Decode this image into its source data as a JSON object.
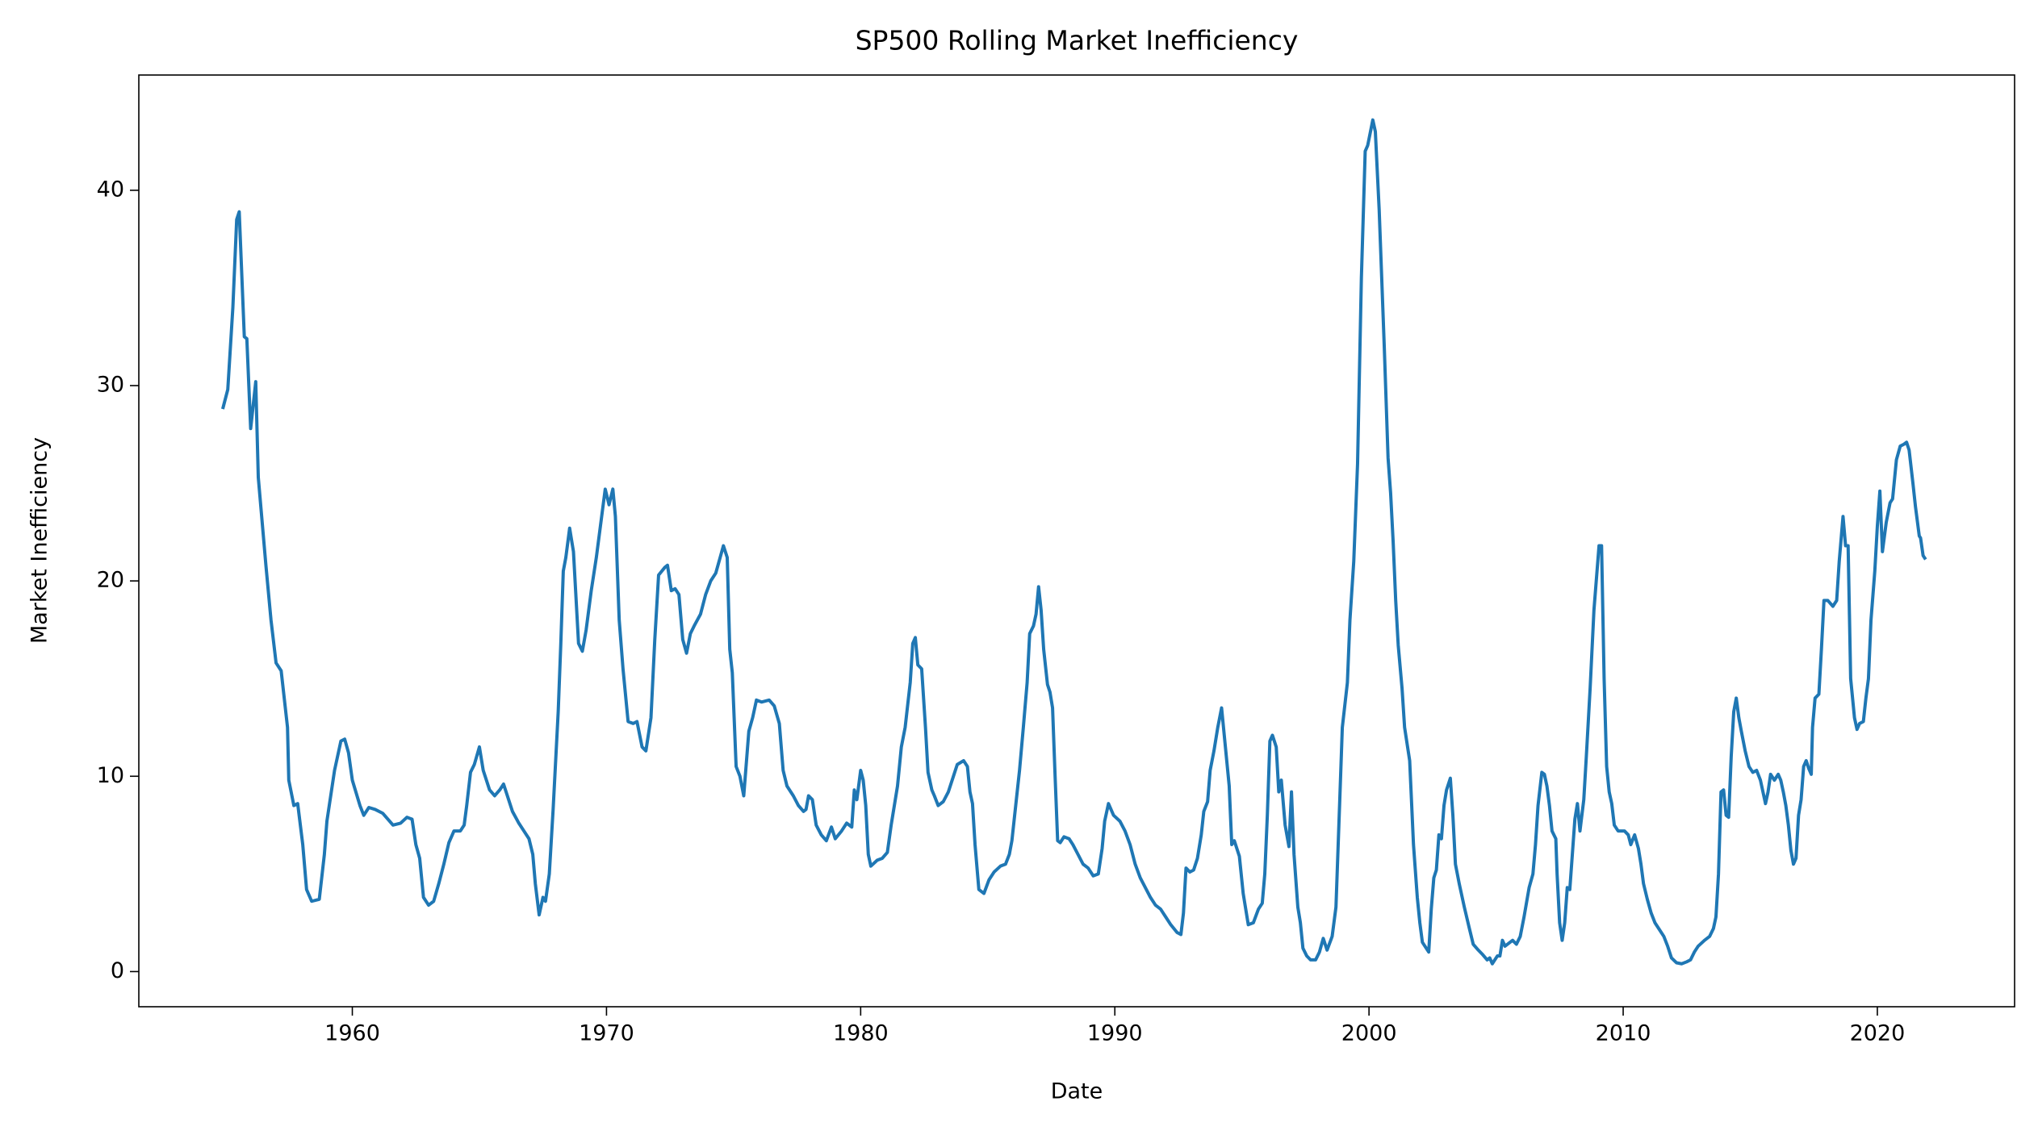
{
  "chart_data": {
    "type": "line",
    "title": "SP500 Rolling Market Inefficiency",
    "x_label": "Date",
    "y_label": "Market Inefficiency",
    "color": "#1f77b4",
    "grid": false,
    "xlim": [
      1951.6,
      2025.4
    ],
    "ylim": [
      -1.8,
      45.9
    ],
    "xticks": [
      1960,
      1970,
      1980,
      1990,
      2000,
      2010,
      2020
    ],
    "yticks": [
      0,
      10,
      20,
      30,
      40
    ],
    "x": [
      1954.9,
      1955.1,
      1955.3,
      1955.45,
      1955.55,
      1955.75,
      1955.85,
      1956.0,
      1956.2,
      1956.3,
      1956.6,
      1956.8,
      1957.0,
      1957.2,
      1957.45,
      1957.5,
      1957.7,
      1957.85,
      1958.05,
      1958.2,
      1958.4,
      1958.7,
      1958.9,
      1959.0,
      1959.3,
      1959.55,
      1959.7,
      1959.85,
      1960.0,
      1960.3,
      1960.45,
      1960.65,
      1960.9,
      1961.2,
      1961.4,
      1961.6,
      1961.9,
      1962.15,
      1962.35,
      1962.5,
      1962.65,
      1962.8,
      1963.0,
      1963.2,
      1963.4,
      1963.6,
      1963.8,
      1964.0,
      1964.25,
      1964.4,
      1964.5,
      1964.65,
      1964.8,
      1965.0,
      1965.15,
      1965.4,
      1965.6,
      1965.8,
      1965.95,
      1966.1,
      1966.3,
      1966.55,
      1966.75,
      1966.95,
      1967.1,
      1967.2,
      1967.35,
      1967.5,
      1967.6,
      1967.75,
      1967.9,
      1968.1,
      1968.2,
      1968.3,
      1968.4,
      1968.55,
      1968.7,
      1968.9,
      1969.05,
      1969.2,
      1969.4,
      1969.6,
      1969.95,
      1970.1,
      1970.25,
      1970.35,
      1970.5,
      1970.65,
      1970.85,
      1971.05,
      1971.2,
      1971.4,
      1971.55,
      1971.75,
      1971.9,
      1972.05,
      1972.3,
      1972.4,
      1972.55,
      1972.7,
      1972.85,
      1973.0,
      1973.15,
      1973.3,
      1973.45,
      1973.7,
      1973.9,
      1974.1,
      1974.3,
      1974.6,
      1974.75,
      1974.85,
      1974.95,
      1975.1,
      1975.25,
      1975.4,
      1975.6,
      1975.75,
      1975.9,
      1976.1,
      1976.4,
      1976.6,
      1976.8,
      1976.95,
      1977.1,
      1977.35,
      1977.55,
      1977.75,
      1977.85,
      1977.95,
      1978.1,
      1978.25,
      1978.45,
      1978.65,
      1978.85,
      1979.0,
      1979.25,
      1979.45,
      1979.65,
      1979.75,
      1979.85,
      1980.0,
      1980.1,
      1980.2,
      1980.3,
      1980.4,
      1980.65,
      1980.85,
      1981.05,
      1981.2,
      1981.45,
      1981.6,
      1981.75,
      1981.95,
      1982.05,
      1982.15,
      1982.25,
      1982.4,
      1982.55,
      1982.65,
      1982.8,
      1982.9,
      1983.05,
      1983.25,
      1983.45,
      1983.65,
      1983.8,
      1984.05,
      1984.2,
      1984.3,
      1984.4,
      1984.5,
      1984.65,
      1984.85,
      1985.05,
      1985.25,
      1985.5,
      1985.7,
      1985.85,
      1985.95,
      1986.1,
      1986.25,
      1986.4,
      1986.55,
      1986.65,
      1986.8,
      1986.9,
      1987.0,
      1987.1,
      1987.2,
      1987.35,
      1987.45,
      1987.55,
      1987.65,
      1987.75,
      1987.85,
      1988.0,
      1988.2,
      1988.35,
      1988.55,
      1988.75,
      1988.95,
      1989.15,
      1989.35,
      1989.5,
      1989.6,
      1989.75,
      1989.95,
      1990.2,
      1990.4,
      1990.6,
      1990.8,
      1991.0,
      1991.2,
      1991.4,
      1991.6,
      1991.8,
      1992.0,
      1992.2,
      1992.45,
      1992.6,
      1992.7,
      1992.8,
      1992.95,
      1993.1,
      1993.25,
      1993.4,
      1993.5,
      1993.65,
      1993.75,
      1993.9,
      1994.05,
      1994.2,
      1994.35,
      1994.5,
      1994.6,
      1994.7,
      1994.9,
      1995.05,
      1995.25,
      1995.45,
      1995.65,
      1995.8,
      1995.9,
      1996.0,
      1996.1,
      1996.2,
      1996.35,
      1996.45,
      1996.55,
      1996.7,
      1996.85,
      1996.95,
      1997.05,
      1997.2,
      1997.3,
      1997.4,
      1997.55,
      1997.7,
      1997.9,
      1998.05,
      1998.2,
      1998.35,
      1998.55,
      1998.7,
      1998.85,
      1998.95,
      1999.15,
      1999.25,
      1999.4,
      1999.55,
      1999.7,
      1999.85,
      1999.95,
      2000.15,
      2000.25,
      2000.4,
      2000.6,
      2000.75,
      2000.85,
      2000.95,
      2001.05,
      2001.15,
      2001.3,
      2001.4,
      2001.6,
      2001.75,
      2001.9,
      2002.0,
      2002.1,
      2002.35,
      2002.45,
      2002.55,
      2002.65,
      2002.75,
      2002.85,
      2002.95,
      2003.05,
      2003.2,
      2003.3,
      2003.4,
      2003.55,
      2003.75,
      2003.95,
      2004.1,
      2004.3,
      2004.45,
      2004.65,
      2004.75,
      2004.85,
      2005.05,
      2005.15,
      2005.25,
      2005.35,
      2005.55,
      2005.65,
      2005.8,
      2005.95,
      2006.1,
      2006.3,
      2006.45,
      2006.55,
      2006.65,
      2006.8,
      2006.9,
      2007.0,
      2007.1,
      2007.2,
      2007.35,
      2007.4,
      2007.5,
      2007.6,
      2007.7,
      2007.8,
      2007.9,
      2008.0,
      2008.1,
      2008.2,
      2008.3,
      2008.45,
      2008.55,
      2008.7,
      2008.85,
      2009.05,
      2009.15,
      2009.25,
      2009.35,
      2009.45,
      2009.55,
      2009.65,
      2009.8,
      2010.05,
      2010.2,
      2010.3,
      2010.45,
      2010.6,
      2010.7,
      2010.8,
      2010.95,
      2011.1,
      2011.25,
      2011.4,
      2011.6,
      2011.75,
      2011.9,
      2012.1,
      2012.3,
      2012.5,
      2012.65,
      2012.8,
      2012.95,
      2013.2,
      2013.4,
      2013.55,
      2013.65,
      2013.75,
      2013.85,
      2013.95,
      2014.05,
      2014.15,
      2014.25,
      2014.35,
      2014.45,
      2014.55,
      2014.65,
      2014.8,
      2014.95,
      2015.1,
      2015.25,
      2015.4,
      2015.5,
      2015.6,
      2015.7,
      2015.8,
      2015.95,
      2016.1,
      2016.2,
      2016.3,
      2016.4,
      2016.5,
      2016.6,
      2016.7,
      2016.8,
      2016.9,
      2017.0,
      2017.1,
      2017.2,
      2017.3,
      2017.4,
      2017.45,
      2017.55,
      2017.7,
      2017.8,
      2017.9,
      2018.05,
      2018.25,
      2018.4,
      2018.5,
      2018.65,
      2018.75,
      2018.85,
      2018.95,
      2019.1,
      2019.2,
      2019.3,
      2019.45,
      2019.55,
      2019.65,
      2019.75,
      2019.9,
      2020.0,
      2020.1,
      2020.2,
      2020.35,
      2020.5,
      2020.6,
      2020.75,
      2020.9,
      2021.05,
      2021.15,
      2021.25,
      2021.4,
      2021.5,
      2021.65,
      2021.7,
      2021.8,
      2021.9
    ],
    "values": [
      28.8,
      29.8,
      34,
      38.5,
      38.9,
      32.5,
      32.4,
      27.8,
      30.2,
      25.3,
      20.8,
      18,
      15.8,
      15.4,
      12.5,
      9.8,
      8.5,
      8.6,
      6.5,
      4.2,
      3.6,
      3.7,
      6,
      7.7,
      10.3,
      11.8,
      11.9,
      11.2,
      9.8,
      8.5,
      8.0,
      8.4,
      8.3,
      8.1,
      7.8,
      7.5,
      7.6,
      7.9,
      7.8,
      6.5,
      5.8,
      3.8,
      3.4,
      3.6,
      4.5,
      5.5,
      6.6,
      7.2,
      7.2,
      7.5,
      8.5,
      10.2,
      10.6,
      11.5,
      10.3,
      9.3,
      9.0,
      9.3,
      9.6,
      9.0,
      8.2,
      7.6,
      7.2,
      6.8,
      6.0,
      4.5,
      2.9,
      3.8,
      3.6,
      5,
      8.3,
      13.3,
      16.7,
      20.5,
      21.2,
      22.7,
      21.5,
      16.8,
      16.4,
      17.5,
      19.5,
      21.2,
      24.7,
      23.9,
      24.7,
      23.3,
      18,
      15.5,
      12.8,
      12.7,
      12.8,
      11.5,
      11.3,
      13.0,
      17.0,
      20.3,
      20.7,
      20.8,
      19.5,
      19.6,
      19.3,
      17.0,
      16.3,
      17.3,
      17.7,
      18.3,
      19.3,
      20.0,
      20.4,
      21.8,
      21.2,
      16.5,
      15.3,
      10.5,
      10.0,
      9.0,
      12.3,
      13.0,
      13.9,
      13.8,
      13.9,
      13.6,
      12.7,
      10.3,
      9.5,
      9.0,
      8.5,
      8.2,
      8.3,
      9.0,
      8.8,
      7.5,
      7.0,
      6.7,
      7.4,
      6.8,
      7.2,
      7.6,
      7.4,
      9.3,
      8.8,
      10.3,
      9.8,
      8.5,
      6.0,
      5.4,
      5.7,
      5.8,
      6.1,
      7.5,
      9.5,
      11.5,
      12.5,
      14.8,
      16.8,
      17.1,
      15.7,
      15.5,
      12.5,
      10.2,
      9.3,
      9.0,
      8.5,
      8.7,
      9.2,
      10.0,
      10.6,
      10.8,
      10.5,
      9.2,
      8.6,
      6.5,
      4.2,
      4.0,
      4.7,
      5.1,
      5.4,
      5.5,
      6.0,
      6.7,
      8.5,
      10.3,
      12.5,
      14.8,
      17.3,
      17.7,
      18.3,
      19.7,
      18.5,
      16.5,
      14.7,
      14.3,
      13.5,
      10,
      6.7,
      6.6,
      6.9,
      6.8,
      6.5,
      6.0,
      5.5,
      5.3,
      4.9,
      5.0,
      6.3,
      7.7,
      8.6,
      8.0,
      7.7,
      7.2,
      6.5,
      5.5,
      4.8,
      4.3,
      3.8,
      3.4,
      3.2,
      2.8,
      2.4,
      2.0,
      1.9,
      3,
      5.3,
      5.1,
      5.2,
      5.8,
      7.0,
      8.2,
      8.7,
      10.3,
      11.3,
      12.5,
      13.5,
      11.5,
      9.5,
      6.5,
      6.7,
      5.9,
      4.0,
      2.4,
      2.5,
      3.2,
      3.5,
      5.0,
      8,
      11.8,
      12.1,
      11.5,
      9.2,
      9.8,
      7.5,
      6.4,
      9.2,
      6.0,
      3.3,
      2.5,
      1.2,
      0.8,
      0.6,
      0.6,
      1.0,
      1.7,
      1.1,
      1.8,
      3.3,
      8.8,
      12.5,
      14.8,
      18,
      21,
      26,
      35.5,
      42,
      42.3,
      43.6,
      43,
      39,
      32,
      26.3,
      24.5,
      22,
      19,
      16.7,
      14.5,
      12.5,
      10.8,
      6.5,
      3.8,
      2.5,
      1.5,
      1.0,
      3.2,
      4.8,
      5.2,
      7.0,
      6.8,
      8.5,
      9.3,
      9.9,
      8.0,
      5.5,
      4.5,
      3.3,
      2.2,
      1.4,
      1.1,
      0.9,
      0.6,
      0.7,
      0.4,
      0.8,
      0.8,
      1.6,
      1.3,
      1.5,
      1.6,
      1.4,
      1.8,
      2.8,
      4.3,
      5,
      6.5,
      8.5,
      10.2,
      10.1,
      9.5,
      8.5,
      7.2,
      6.8,
      5,
      2.5,
      1.6,
      2.5,
      4.3,
      4.2,
      6,
      7.8,
      8.6,
      7.2,
      8.8,
      11,
      14.5,
      18.5,
      21.8,
      21.8,
      15,
      10.5,
      9.2,
      8.6,
      7.5,
      7.2,
      7.2,
      7.0,
      6.5,
      7.0,
      6.3,
      5.5,
      4.5,
      3.7,
      3.0,
      2.5,
      2.2,
      1.8,
      1.3,
      0.7,
      0.45,
      0.4,
      0.5,
      0.6,
      1.0,
      1.3,
      1.6,
      1.8,
      2.2,
      2.8,
      5,
      9.2,
      9.3,
      8.0,
      7.9,
      11,
      13.3,
      14,
      13,
      12.3,
      11.3,
      10.5,
      10.2,
      10.3,
      9.8,
      9.2,
      8.6,
      9.2,
      10.1,
      9.8,
      10.1,
      9.8,
      9.2,
      8.5,
      7.5,
      6.2,
      5.5,
      5.8,
      8.0,
      8.8,
      10.5,
      10.8,
      10.4,
      10.1,
      12.5,
      14,
      14.2,
      16.5,
      19,
      19,
      18.7,
      19.0,
      21.0,
      23.3,
      21.8,
      21.8,
      15,
      13,
      12.4,
      12.7,
      12.8,
      14,
      15,
      18,
      20.5,
      22.8,
      24.6,
      21.5,
      23,
      24,
      24.2,
      26.2,
      26.9,
      27,
      27.1,
      26.7,
      25,
      23.8,
      22.3,
      22.2,
      21.3,
      21.1
    ]
  }
}
